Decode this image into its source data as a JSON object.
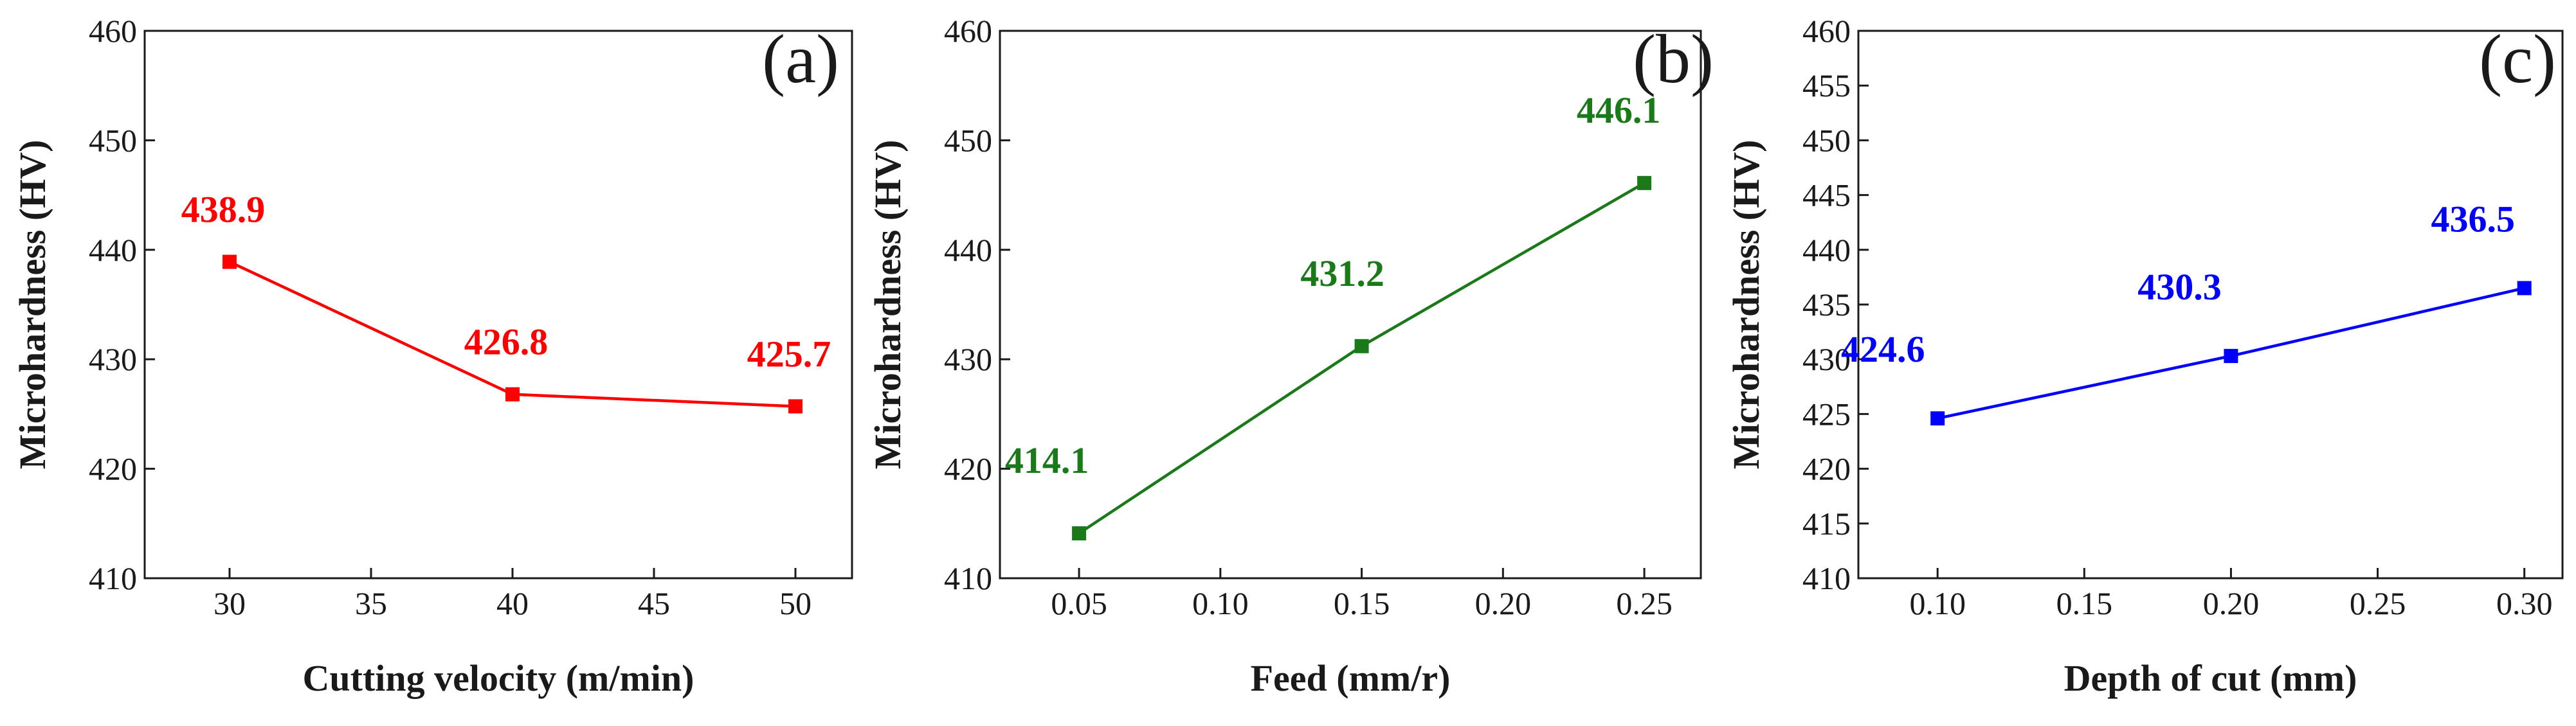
{
  "chart_data": [
    {
      "type": "line",
      "panel_label": "(a)",
      "color": "#ff0000",
      "xlabel": "Cutting velocity (m/min)",
      "ylabel": "Microhardness (HV)",
      "xlim": [
        27,
        52
      ],
      "ylim": [
        410,
        460
      ],
      "xticks": [
        30,
        35,
        40,
        45,
        50
      ],
      "xtick_labels": [
        "30",
        "35",
        "40",
        "45",
        "50"
      ],
      "yticks": [
        410,
        420,
        430,
        440,
        450,
        460
      ],
      "ytick_labels": [
        "410",
        "420",
        "430",
        "440",
        "450",
        "460"
      ],
      "x": [
        30,
        40,
        50
      ],
      "values": [
        438.9,
        426.8,
        425.7
      ],
      "data_labels": [
        "438.9",
        "426.8",
        "425.7"
      ]
    },
    {
      "type": "line",
      "panel_label": "(b)",
      "color": "#1a7a1a",
      "xlabel": "Feed (mm/r)",
      "ylabel": "Microhardness (HV)",
      "xlim": [
        0.022,
        0.27
      ],
      "ylim": [
        410,
        460
      ],
      "xticks": [
        0.05,
        0.1,
        0.15,
        0.2,
        0.25
      ],
      "xtick_labels": [
        "0.05",
        "0.10",
        "0.15",
        "0.20",
        "0.25"
      ],
      "yticks": [
        410,
        420,
        430,
        440,
        450,
        460
      ],
      "ytick_labels": [
        "410",
        "420",
        "430",
        "440",
        "450",
        "460"
      ],
      "x": [
        0.05,
        0.15,
        0.25
      ],
      "values": [
        414.1,
        431.2,
        446.1
      ],
      "data_labels": [
        "414.1",
        "431.2",
        "446.1"
      ]
    },
    {
      "type": "line",
      "panel_label": "(c)",
      "color": "#0000ff",
      "xlabel": "Depth of cut (mm)",
      "ylabel": "Microhardness (HV)",
      "xlim": [
        0.073,
        0.313
      ],
      "ylim": [
        410,
        460
      ],
      "xticks": [
        0.1,
        0.15,
        0.2,
        0.25,
        0.3
      ],
      "xtick_labels": [
        "0.10",
        "0.15",
        "0.20",
        "0.25",
        "0.30"
      ],
      "yticks": [
        410,
        415,
        420,
        425,
        430,
        435,
        440,
        445,
        450,
        455,
        460
      ],
      "ytick_labels": [
        "410",
        "415",
        "420",
        "425",
        "430",
        "435",
        "440",
        "445",
        "450",
        "455",
        "460"
      ],
      "x": [
        0.1,
        0.2,
        0.3
      ],
      "values": [
        424.6,
        430.3,
        436.5
      ],
      "data_labels": [
        "424.6",
        "430.3",
        "436.5"
      ]
    }
  ]
}
